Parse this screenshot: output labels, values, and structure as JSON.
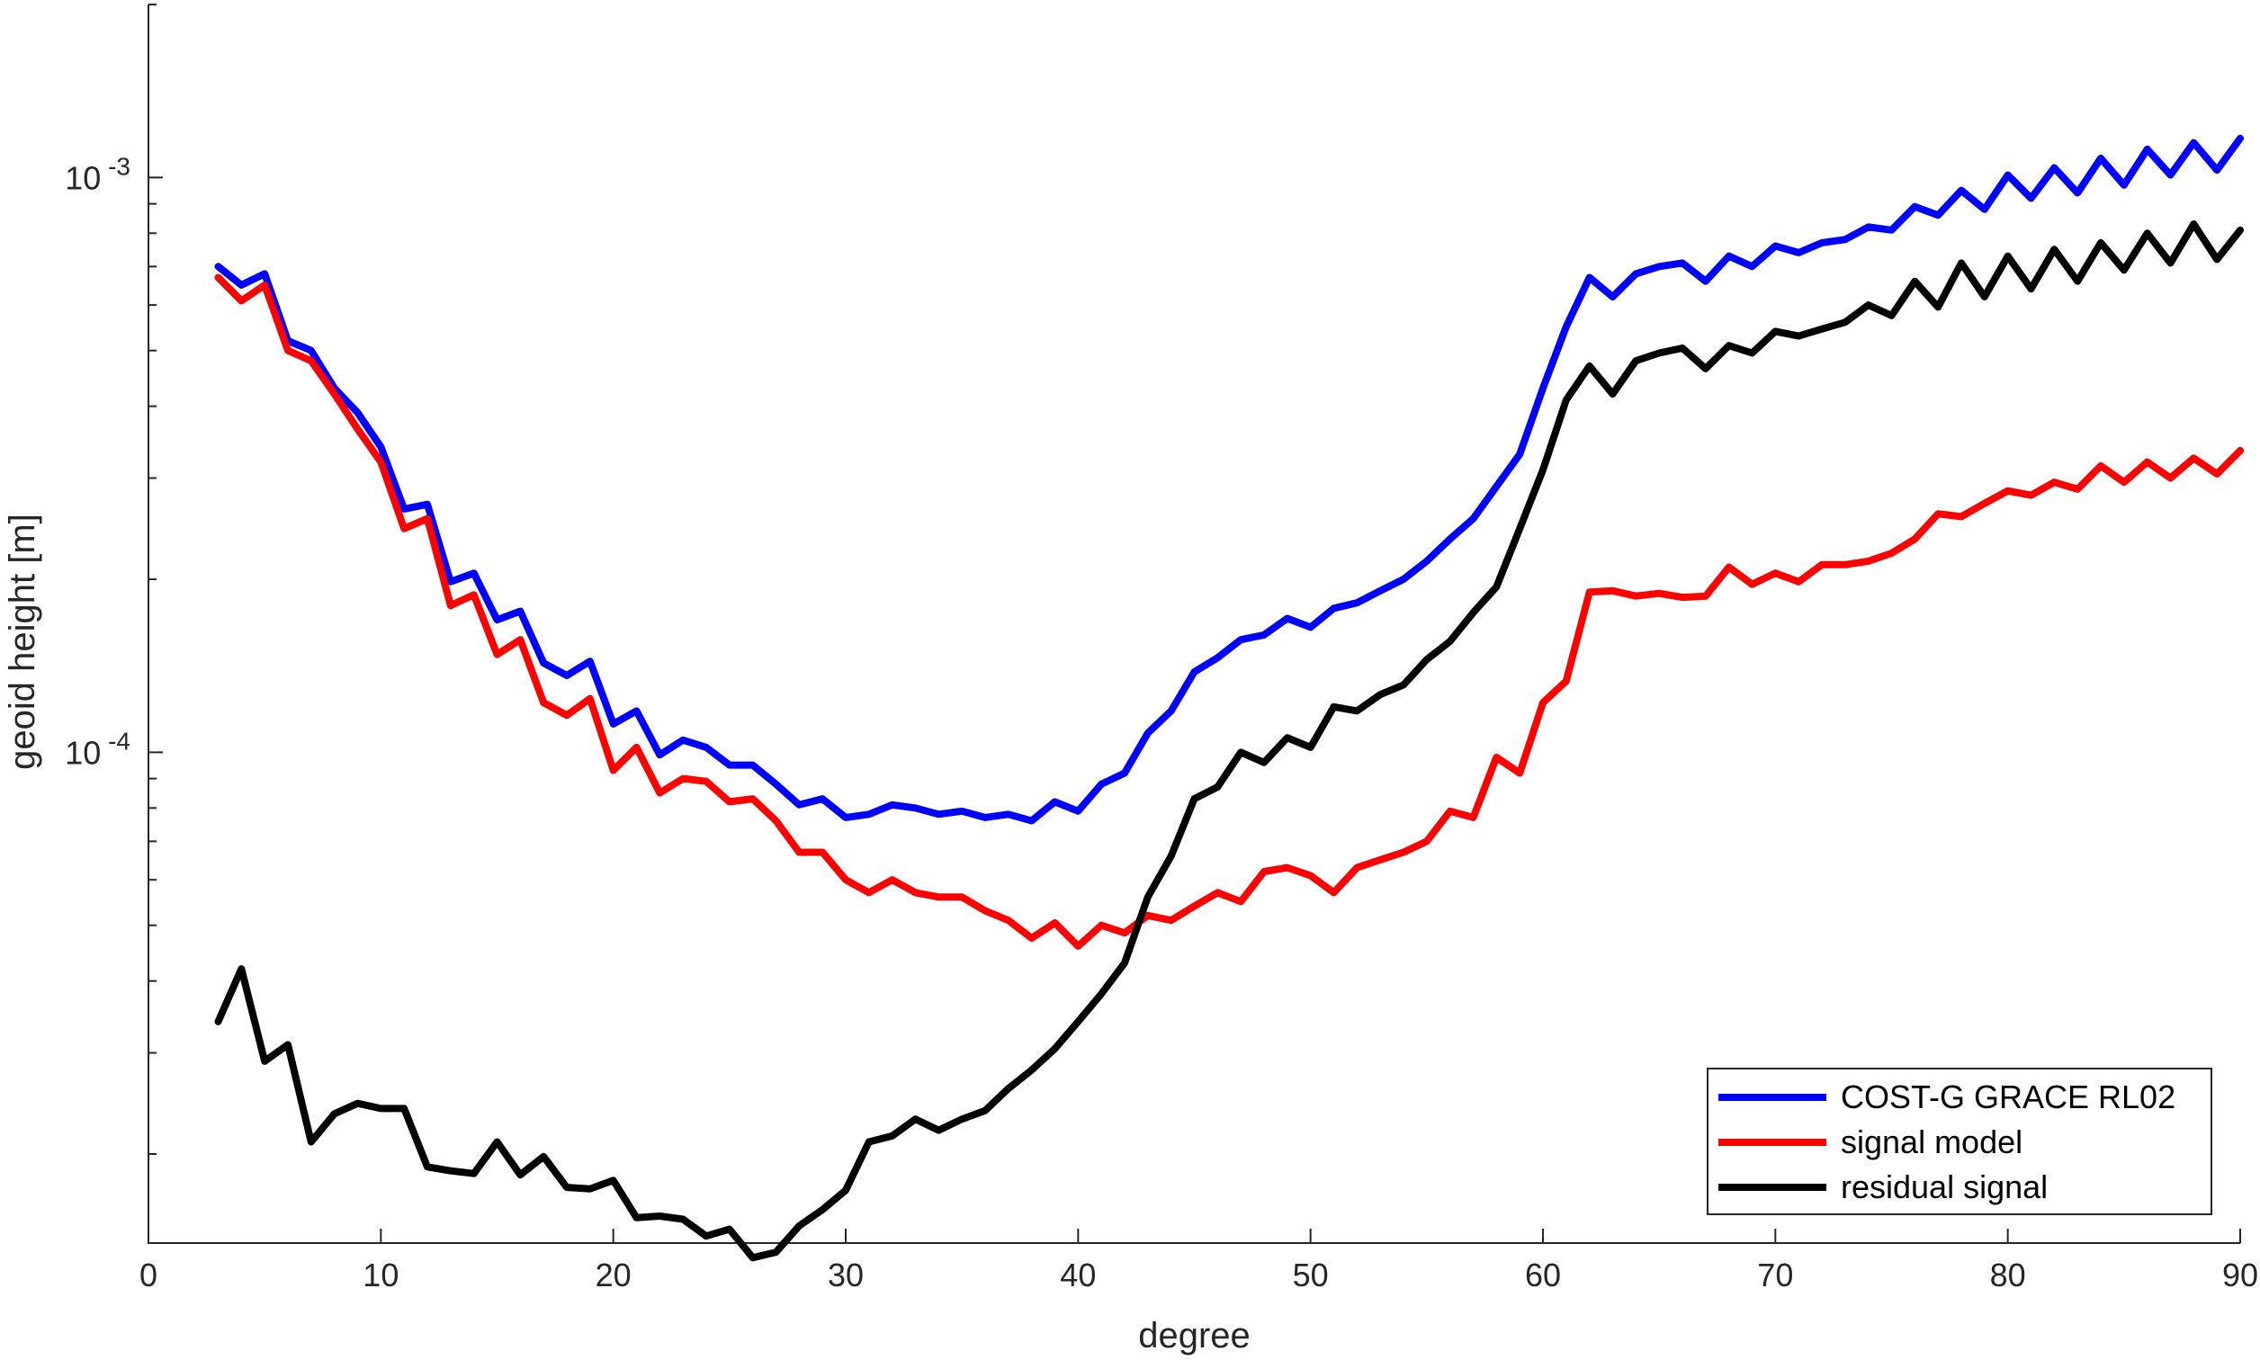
{
  "chart_data": {
    "type": "line",
    "title": "",
    "xlabel": "degree",
    "ylabel": "geoid height [m]",
    "xlim": [
      0,
      90
    ],
    "ylim": [
      1.4e-05,
      0.002
    ],
    "yscale": "log",
    "x_ticks": [
      0,
      10,
      20,
      30,
      40,
      50,
      60,
      70,
      80,
      90
    ],
    "x_tick_labels": [
      "0",
      "10",
      "20",
      "30",
      "40",
      "50",
      "60",
      "70",
      "80",
      "90"
    ],
    "y_major_ticks": [
      {
        "value": 0.0001,
        "base": "10",
        "exp": "-4"
      },
      {
        "value": 0.001,
        "base": "10",
        "exp": "-3"
      }
    ],
    "y_minor_ticks": [
      2e-05,
      3e-05,
      4e-05,
      5e-05,
      6e-05,
      7e-05,
      8e-05,
      9e-05,
      0.0002,
      0.0003,
      0.0004,
      0.0005,
      0.0006,
      0.0007,
      0.0008,
      0.0009,
      0.002
    ],
    "grid": false,
    "legend_position": "bottom-right",
    "x": [
      3,
      4,
      5,
      6,
      7,
      8,
      9,
      10,
      11,
      12,
      13,
      14,
      15,
      16,
      17,
      18,
      19,
      20,
      21,
      22,
      23,
      24,
      25,
      26,
      27,
      28,
      29,
      30,
      31,
      32,
      33,
      34,
      35,
      36,
      37,
      38,
      39,
      40,
      41,
      42,
      43,
      44,
      45,
      46,
      47,
      48,
      49,
      50,
      51,
      52,
      53,
      54,
      55,
      56,
      57,
      58,
      59,
      60,
      61,
      62,
      63,
      64,
      65,
      66,
      67,
      68,
      69,
      70,
      71,
      72,
      73,
      74,
      75,
      76,
      77,
      78,
      79,
      80,
      81,
      82,
      83,
      84,
      85,
      86,
      87,
      88,
      89,
      90
    ],
    "series": [
      {
        "name": "COST-G GRACE RL02",
        "color": "#0000ff",
        "values": [
          0.0007,
          0.00065,
          0.00068,
          0.00052,
          0.0005,
          0.00043,
          0.00039,
          0.00034,
          0.000265,
          0.00027,
          0.000198,
          0.000205,
          0.00017,
          0.000176,
          0.000143,
          0.000136,
          0.000144,
          0.000112,
          0.000118,
          9.9e-05,
          0.000105,
          0.000102,
          9.5e-05,
          9.5e-05,
          8.8e-05,
          8.1e-05,
          8.3e-05,
          7.7e-05,
          7.8e-05,
          8.1e-05,
          8e-05,
          7.8e-05,
          7.9e-05,
          7.7e-05,
          7.8e-05,
          7.6e-05,
          8.2e-05,
          7.9e-05,
          8.8e-05,
          9.2e-05,
          0.000108,
          0.000118,
          0.000138,
          0.000146,
          0.000157,
          0.00016,
          0.000171,
          0.000165,
          0.000178,
          0.000182,
          0.000191,
          0.0002,
          0.000215,
          0.000235,
          0.000255,
          0.00029,
          0.00033,
          0.00043,
          0.00055,
          0.00067,
          0.00062,
          0.00068,
          0.0007,
          0.00071,
          0.00066,
          0.00073,
          0.0007,
          0.00076,
          0.00074,
          0.00077,
          0.00078,
          0.00082,
          0.00081,
          0.00089,
          0.00086,
          0.00095,
          0.00088,
          0.00101,
          0.00092,
          0.00104,
          0.00094,
          0.00108,
          0.00097,
          0.00112,
          0.00101,
          0.00115,
          0.00103,
          0.00117
        ]
      },
      {
        "name": "signal model",
        "color": "#ff0000",
        "values": [
          0.00067,
          0.00061,
          0.00065,
          0.0005,
          0.00048,
          0.00042,
          0.000365,
          0.00032,
          0.000245,
          0.000255,
          0.00018,
          0.000188,
          0.000148,
          0.000157,
          0.000122,
          0.000116,
          0.000124,
          9.3e-05,
          0.000102,
          8.5e-05,
          9e-05,
          8.9e-05,
          8.2e-05,
          8.3e-05,
          7.6e-05,
          6.7e-05,
          6.7e-05,
          6e-05,
          5.7e-05,
          6e-05,
          5.7e-05,
          5.6e-05,
          5.6e-05,
          5.3e-05,
          5.1e-05,
          4.75e-05,
          5.05e-05,
          4.6e-05,
          5e-05,
          4.85e-05,
          5.2e-05,
          5.1e-05,
          5.4e-05,
          5.7e-05,
          5.5e-05,
          6.2e-05,
          6.3e-05,
          6.1e-05,
          5.7e-05,
          6.3e-05,
          6.5e-05,
          6.7e-05,
          7e-05,
          7.9e-05,
          7.7e-05,
          9.8e-05,
          9.2e-05,
          0.000122,
          0.000133,
          0.00019,
          0.000191,
          0.000187,
          0.000189,
          0.000186,
          0.000187,
          0.00021,
          0.000196,
          0.000205,
          0.000198,
          0.000212,
          0.000212,
          0.000215,
          0.000222,
          0.000235,
          0.00026,
          0.000257,
          0.000271,
          0.000285,
          0.00028,
          0.000295,
          0.000287,
          0.000315,
          0.000295,
          0.00032,
          0.0003,
          0.000325,
          0.000305,
          0.000335
        ]
      },
      {
        "name": "residual signal",
        "color": "#000000",
        "values": [
          3.4e-05,
          4.2e-05,
          2.9e-05,
          3.1e-05,
          2.1e-05,
          2.35e-05,
          2.45e-05,
          2.4e-05,
          2.4e-05,
          1.9e-05,
          1.87e-05,
          1.85e-05,
          2.1e-05,
          1.84e-05,
          1.98e-05,
          1.75e-05,
          1.74e-05,
          1.8e-05,
          1.55e-05,
          1.56e-05,
          1.54e-05,
          1.44e-05,
          1.48e-05,
          1.32e-05,
          1.35e-05,
          1.5e-05,
          1.6e-05,
          1.73e-05,
          2.1e-05,
          2.15e-05,
          2.3e-05,
          2.2e-05,
          2.3e-05,
          2.38e-05,
          2.6e-05,
          2.8e-05,
          3.05e-05,
          3.4e-05,
          3.8e-05,
          4.3e-05,
          5.6e-05,
          6.6e-05,
          8.3e-05,
          8.7e-05,
          0.0001,
          9.6e-05,
          0.000106,
          0.000102,
          0.00012,
          0.000118,
          0.000126,
          0.000131,
          0.000145,
          0.000156,
          0.000175,
          0.000194,
          0.000245,
          0.00031,
          0.00041,
          0.00047,
          0.00042,
          0.00048,
          0.000495,
          0.000505,
          0.000465,
          0.00051,
          0.000495,
          0.00054,
          0.00053,
          0.000545,
          0.00056,
          0.0006,
          0.000575,
          0.00066,
          0.000595,
          0.00071,
          0.00062,
          0.00073,
          0.00064,
          0.00075,
          0.00066,
          0.00077,
          0.00069,
          0.0008,
          0.00071,
          0.00083,
          0.00072,
          0.00081
        ]
      }
    ]
  }
}
